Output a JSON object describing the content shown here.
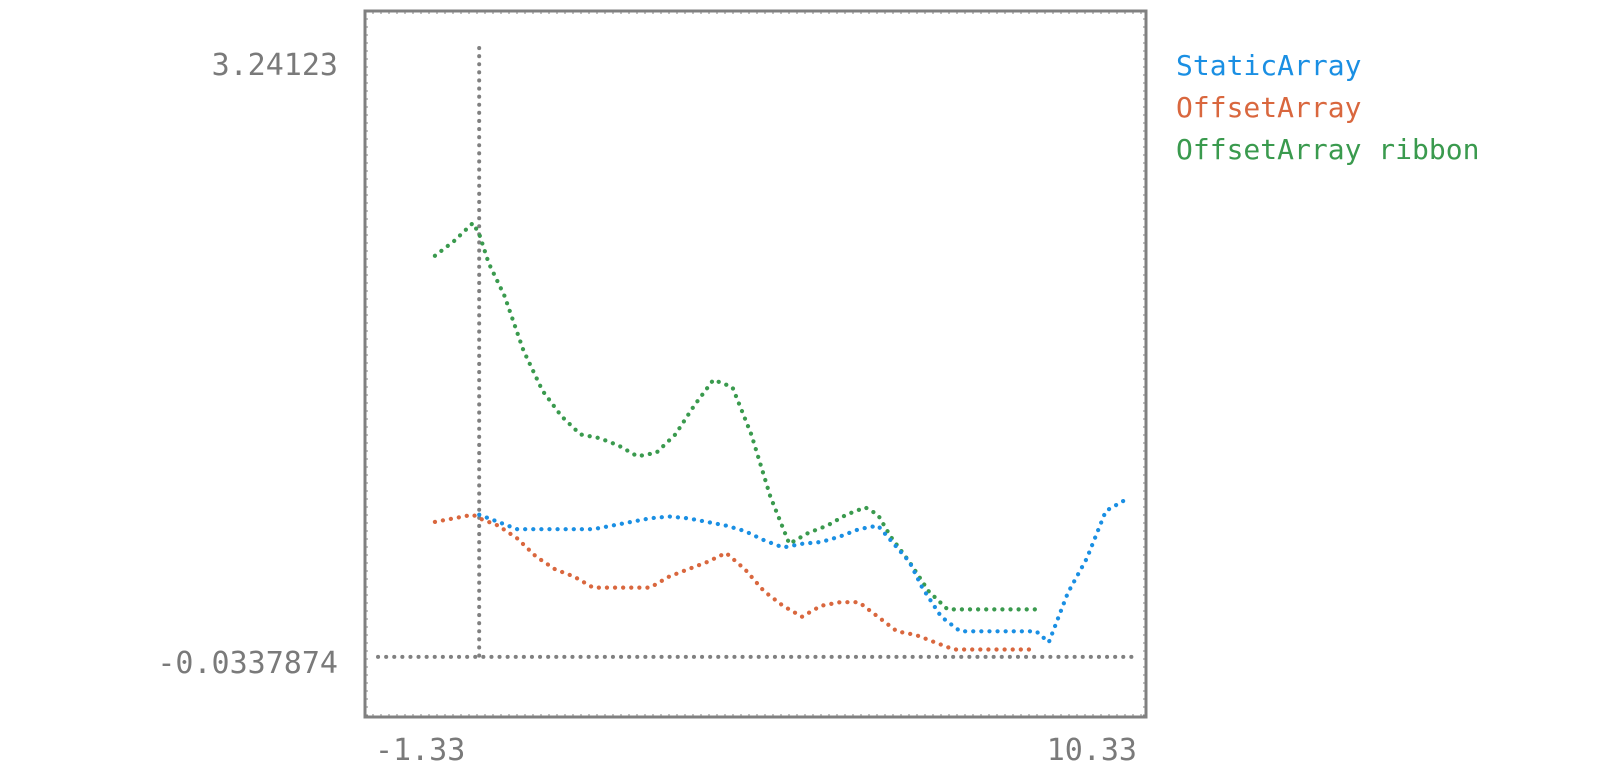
{
  "chart_data": {
    "type": "line",
    "style": "unicode-braille-dots",
    "title": "",
    "xlabel": "",
    "ylabel": "",
    "xlim": [
      -1.33,
      10.33
    ],
    "ylim": [
      -0.0337874,
      3.24123
    ],
    "x_tick_labels": [
      "-1.33",
      "10.33"
    ],
    "y_tick_labels": [
      "3.24123",
      "-0.0337874"
    ],
    "reference_lines": {
      "vertical_x": 0,
      "horizontal_y": 0
    },
    "legend_position": "right-outside",
    "series": [
      {
        "name": "StaticArray",
        "color": "#1a8fe3",
        "points": [
          [
            0.0,
            0.78
          ],
          [
            0.3,
            0.74
          ],
          [
            0.6,
            0.7
          ],
          [
            0.9,
            0.7
          ],
          [
            1.2,
            0.7
          ],
          [
            1.5,
            0.7
          ],
          [
            1.8,
            0.7
          ],
          [
            2.1,
            0.72
          ],
          [
            2.4,
            0.74
          ],
          [
            2.7,
            0.76
          ],
          [
            3.0,
            0.77
          ],
          [
            3.3,
            0.76
          ],
          [
            3.6,
            0.74
          ],
          [
            3.9,
            0.72
          ],
          [
            4.2,
            0.69
          ],
          [
            4.5,
            0.64
          ],
          [
            4.8,
            0.6
          ],
          [
            5.1,
            0.62
          ],
          [
            5.4,
            0.63
          ],
          [
            5.7,
            0.66
          ],
          [
            6.0,
            0.7
          ],
          [
            6.3,
            0.72
          ],
          [
            6.5,
            0.64
          ],
          [
            6.8,
            0.52
          ],
          [
            7.0,
            0.38
          ],
          [
            7.3,
            0.22
          ],
          [
            7.6,
            0.14
          ],
          [
            7.9,
            0.14
          ],
          [
            8.2,
            0.14
          ],
          [
            8.5,
            0.14
          ],
          [
            8.8,
            0.14
          ],
          [
            9.0,
            0.08
          ],
          [
            9.3,
            0.35
          ],
          [
            9.6,
            0.54
          ],
          [
            9.9,
            0.8
          ],
          [
            10.2,
            0.86
          ]
        ]
      },
      {
        "name": "OffsetArray",
        "color": "#d9673e",
        "points": [
          [
            -0.7,
            0.74
          ],
          [
            -0.4,
            0.76
          ],
          [
            -0.1,
            0.78
          ],
          [
            0.0,
            0.76
          ],
          [
            0.3,
            0.72
          ],
          [
            0.6,
            0.65
          ],
          [
            0.9,
            0.55
          ],
          [
            1.2,
            0.48
          ],
          [
            1.5,
            0.44
          ],
          [
            1.8,
            0.38
          ],
          [
            2.1,
            0.38
          ],
          [
            2.4,
            0.38
          ],
          [
            2.7,
            0.38
          ],
          [
            3.0,
            0.44
          ],
          [
            3.3,
            0.48
          ],
          [
            3.6,
            0.52
          ],
          [
            3.9,
            0.57
          ],
          [
            4.2,
            0.48
          ],
          [
            4.5,
            0.36
          ],
          [
            4.8,
            0.28
          ],
          [
            5.1,
            0.22
          ],
          [
            5.4,
            0.28
          ],
          [
            5.7,
            0.3
          ],
          [
            6.0,
            0.3
          ],
          [
            6.3,
            0.22
          ],
          [
            6.6,
            0.14
          ],
          [
            6.9,
            0.12
          ],
          [
            7.2,
            0.08
          ],
          [
            7.5,
            0.04
          ],
          [
            7.8,
            0.04
          ],
          [
            8.1,
            0.04
          ],
          [
            8.4,
            0.04
          ],
          [
            8.7,
            0.04
          ]
        ]
      },
      {
        "name": "OffsetArray ribbon",
        "color": "#3a9a4e",
        "points": [
          [
            -0.7,
            2.2
          ],
          [
            -0.4,
            2.28
          ],
          [
            -0.1,
            2.38
          ],
          [
            0.0,
            2.32
          ],
          [
            0.15,
            2.16
          ],
          [
            0.4,
            1.98
          ],
          [
            0.7,
            1.68
          ],
          [
            1.0,
            1.46
          ],
          [
            1.3,
            1.32
          ],
          [
            1.6,
            1.22
          ],
          [
            1.9,
            1.2
          ],
          [
            2.2,
            1.16
          ],
          [
            2.5,
            1.1
          ],
          [
            2.8,
            1.12
          ],
          [
            3.1,
            1.22
          ],
          [
            3.4,
            1.38
          ],
          [
            3.7,
            1.52
          ],
          [
            4.0,
            1.48
          ],
          [
            4.3,
            1.22
          ],
          [
            4.6,
            0.88
          ],
          [
            4.9,
            0.62
          ],
          [
            5.2,
            0.68
          ],
          [
            5.5,
            0.72
          ],
          [
            5.8,
            0.78
          ],
          [
            6.1,
            0.82
          ],
          [
            6.3,
            0.78
          ],
          [
            6.5,
            0.66
          ],
          [
            6.8,
            0.52
          ],
          [
            7.1,
            0.36
          ],
          [
            7.4,
            0.26
          ],
          [
            7.7,
            0.26
          ],
          [
            8.0,
            0.26
          ],
          [
            8.3,
            0.26
          ],
          [
            8.6,
            0.26
          ],
          [
            8.8,
            0.26
          ]
        ]
      }
    ]
  },
  "legend": {
    "items": [
      {
        "label": "StaticArray",
        "color": "#1a8fe3"
      },
      {
        "label": "OffsetArray",
        "color": "#d9673e"
      },
      {
        "label": "OffsetArray ribbon",
        "color": "#3a9a4e"
      }
    ]
  },
  "colors": {
    "frame": "#808080",
    "axis_text": "#7a7a7a",
    "reference_line": "#808080"
  }
}
